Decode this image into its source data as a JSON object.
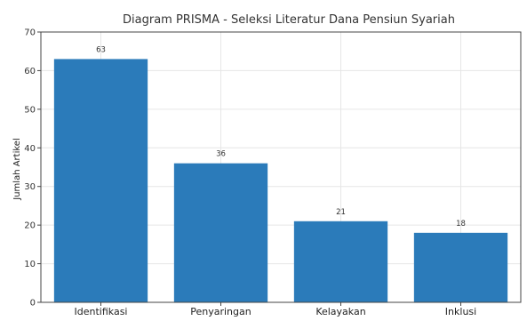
{
  "chart_data": {
    "type": "bar",
    "title": "Diagram PRISMA - Seleksi Literatur Dana Pensiun Syariah",
    "xlabel": "",
    "ylabel": "Jumlah Artikel",
    "categories": [
      "Identifikasi",
      "Penyaringan",
      "Kelayakan",
      "Inklusi"
    ],
    "values": [
      63,
      36,
      21,
      18
    ],
    "ylim": [
      0,
      70
    ],
    "yticks": [
      0,
      10,
      20,
      30,
      40,
      50,
      60,
      70
    ],
    "grid": true,
    "bar_color": "#2b7bba"
  }
}
